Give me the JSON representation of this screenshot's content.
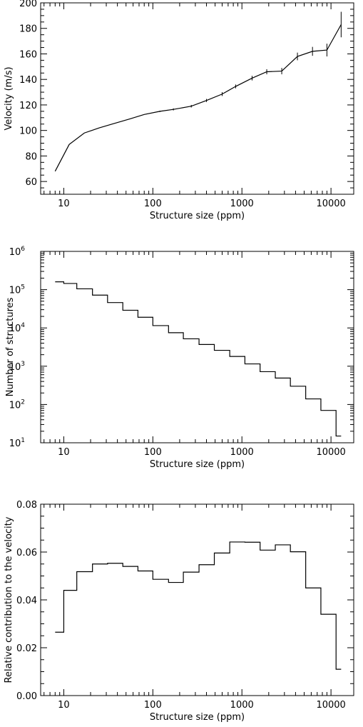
{
  "chart_data": [
    {
      "type": "line",
      "xlabel": "Structure size (ppm)",
      "ylabel": "Velocity (m/s)",
      "xscale": "log",
      "xlim": [
        5.5,
        18000
      ],
      "ylim": [
        50,
        200
      ],
      "xticks": [
        10,
        100,
        1000,
        10000
      ],
      "yticks": [
        60,
        80,
        100,
        120,
        140,
        160,
        180,
        200
      ],
      "x": [
        8,
        11.5,
        17,
        25,
        35,
        55,
        80,
        120,
        170,
        270,
        400,
        600,
        850,
        1300,
        1900,
        2800,
        4200,
        6200,
        9000,
        13000
      ],
      "y": [
        68,
        89,
        98,
        102,
        105,
        109,
        112.5,
        115,
        116.5,
        119,
        123.5,
        128.5,
        134.5,
        141,
        146,
        146.5,
        158,
        162,
        163,
        183
      ],
      "yerr": [
        0,
        0,
        0,
        0,
        0,
        0,
        0,
        0.5,
        0.8,
        1.0,
        1.2,
        1.5,
        1.5,
        1.8,
        2,
        2.5,
        3,
        3.5,
        5,
        10
      ]
    },
    {
      "type": "step",
      "xlabel": "Structure size (ppm)",
      "ylabel": "Number of structures",
      "xscale": "log",
      "yscale": "log",
      "xlim": [
        5.5,
        18000
      ],
      "ylim": [
        10,
        1000000
      ],
      "xticks": [
        10,
        100,
        1000,
        10000
      ],
      "yticks": [
        10,
        100,
        1000,
        10000,
        100000,
        1000000
      ],
      "edges": [
        8,
        10,
        14,
        21,
        31,
        46,
        68,
        100,
        150,
        220,
        330,
        490,
        730,
        1080,
        1600,
        2370,
        3500,
        5200,
        7700,
        11400,
        13000
      ],
      "values": [
        160000,
        145000,
        105000,
        72000,
        46000,
        29000,
        19000,
        11500,
        7500,
        5200,
        3700,
        2600,
        1800,
        1150,
        720,
        490,
        300,
        140,
        70,
        15
      ]
    },
    {
      "type": "step",
      "xlabel": "Structure size (ppm)",
      "ylabel": "Relative contribution to the velocity",
      "xscale": "log",
      "xlim": [
        5.5,
        18000
      ],
      "ylim": [
        0,
        0.08
      ],
      "xticks": [
        10,
        100,
        1000,
        10000
      ],
      "yticks": [
        0,
        0.02,
        0.04,
        0.06,
        0.08
      ],
      "edges": [
        8,
        10,
        14,
        21,
        31,
        46,
        68,
        100,
        150,
        220,
        330,
        490,
        730,
        1080,
        1600,
        2370,
        3500,
        5200,
        7700,
        11400,
        13000
      ],
      "values": [
        0.0265,
        0.044,
        0.0518,
        0.055,
        0.0553,
        0.054,
        0.0521,
        0.0486,
        0.0473,
        0.0516,
        0.0547,
        0.0596,
        0.0642,
        0.0641,
        0.0608,
        0.063,
        0.0601,
        0.045,
        0.034,
        0.011
      ]
    }
  ]
}
